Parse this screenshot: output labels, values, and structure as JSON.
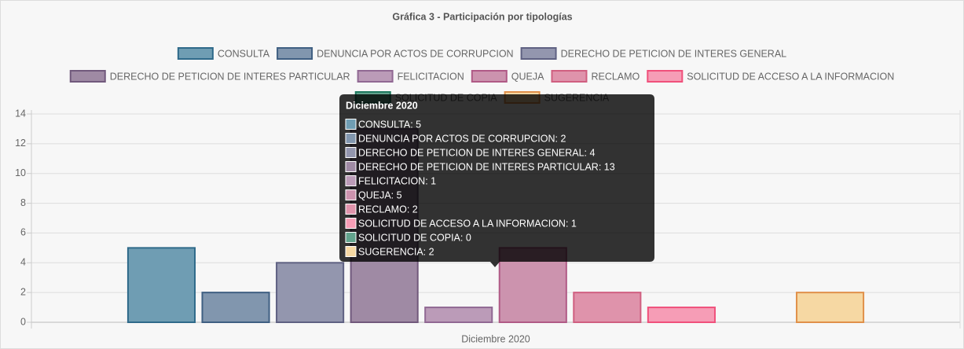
{
  "chart_data": {
    "type": "bar",
    "title": "Gráfica 3 - Participación por tipologías",
    "categories": [
      "Diciembre 2020"
    ],
    "series": [
      {
        "name": "CONSULTA",
        "color": "#6f9db3",
        "border": "#2f6a8a",
        "values": [
          5
        ]
      },
      {
        "name": "DENUNCIA POR ACTOS DE CORRUPCION",
        "color": "#8196ae",
        "border": "#3f5f82",
        "values": [
          2
        ]
      },
      {
        "name": "DERECHO DE PETICION DE INTERES GENERAL",
        "color": "#9396ae",
        "border": "#5f6182",
        "values": [
          4
        ]
      },
      {
        "name": "DERECHO DE PETICION DE INTERES PARTICULAR",
        "color": "#9f8aa4",
        "border": "#71597c",
        "values": [
          13
        ]
      },
      {
        "name": "FELICITACION",
        "color": "#bb9bb8",
        "border": "#906893",
        "values": [
          1
        ]
      },
      {
        "name": "QUEJA",
        "color": "#cc93ae",
        "border": "#b05a86",
        "values": [
          5
        ]
      },
      {
        "name": "RECLAMO",
        "color": "#df93ab",
        "border": "#d05f80",
        "values": [
          2
        ]
      },
      {
        "name": "SOLICITUD DE ACCESO A LA INFORMACION",
        "color": "#f69db6",
        "border": "#f0507b",
        "values": [
          1
        ]
      },
      {
        "name": "SOLICITUD DE COPIA",
        "color": "#62a38d",
        "border": "#1f7a60",
        "values": [
          0
        ]
      },
      {
        "name": "SUGERENCIA",
        "color": "#f6d8a3",
        "border": "#e0904a",
        "values": [
          2
        ]
      }
    ],
    "ylim": [
      0,
      14
    ],
    "yticks": [
      0,
      2,
      4,
      6,
      8,
      10,
      12,
      14
    ],
    "grid": true,
    "legend": "top",
    "tooltip": {
      "title": "Diciembre 2020",
      "lines": [
        "CONSULTA: 5",
        "DENUNCIA POR ACTOS DE CORRUPCION: 2",
        "DERECHO DE PETICION DE INTERES GENERAL: 4",
        "DERECHO DE PETICION DE INTERES PARTICULAR: 13",
        "FELICITACION: 1",
        "QUEJA: 5",
        "RECLAMO: 2",
        "SOLICITUD DE ACCESO A LA INFORMACION: 1",
        "SOLICITUD DE COPIA: 0",
        "SUGERENCIA: 2"
      ]
    }
  }
}
